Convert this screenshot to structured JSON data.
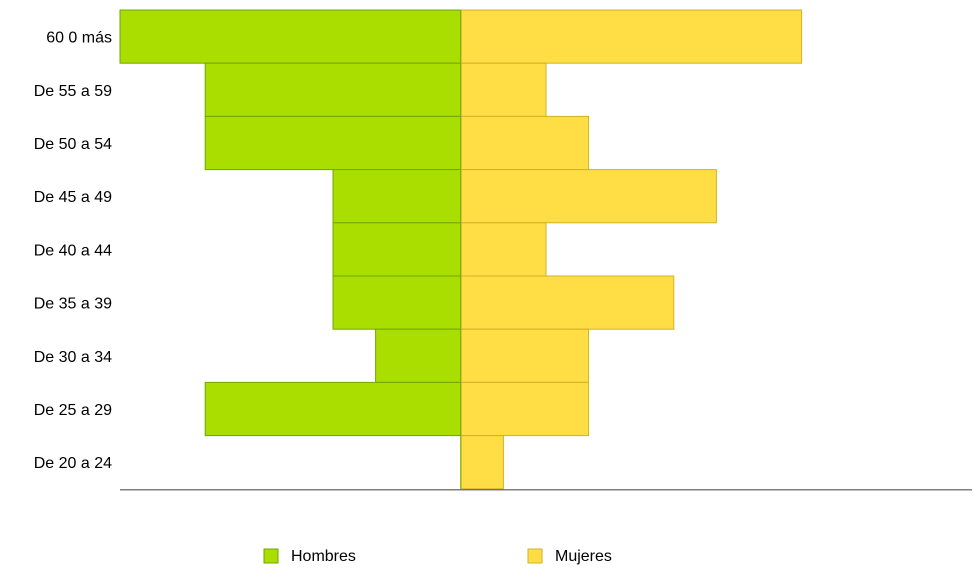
{
  "chart_data": {
    "type": "bar",
    "orientation": "horizontal",
    "layout": "population-pyramid",
    "title": "",
    "xlabel": "",
    "ylabel": "",
    "categories": [
      "60 0 más",
      "De 55 a 59",
      "De 50 a 54",
      "De 45 a 49",
      "De 40 a 44",
      "De 35 a 39",
      "De 30 a 34",
      "De 25 a 29",
      "De 20 a 24"
    ],
    "xlim": [
      -8,
      12
    ],
    "grid": false,
    "legend_position": "bottom",
    "series": [
      {
        "name": "Hombres",
        "side": "left",
        "color": "#aadd00",
        "border": "#6fa800",
        "values": [
          8,
          6,
          6,
          3,
          3,
          3,
          2,
          6,
          0
        ]
      },
      {
        "name": "Mujeres",
        "side": "right",
        "color": "#ffdd44",
        "border": "#d2b227",
        "values": [
          8,
          2,
          3,
          6,
          2,
          5,
          3,
          3,
          1
        ]
      }
    ]
  }
}
